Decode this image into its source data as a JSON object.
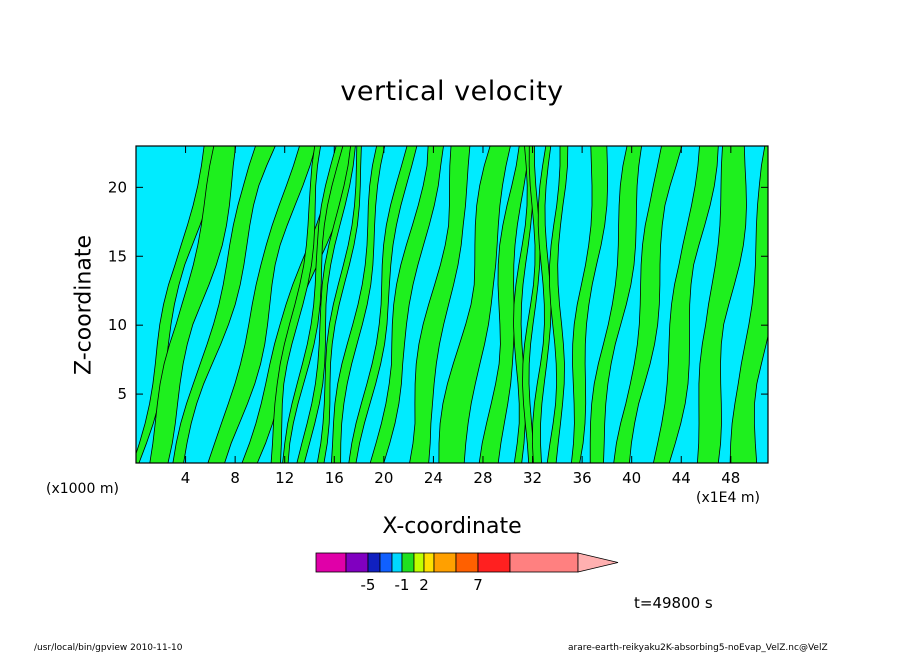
{
  "chart_data": {
    "type": "heatmap",
    "title": "vertical velocity",
    "xlabel": "X-coordinate",
    "ylabel": "Z-coordinate",
    "x_unit_left": "(x1000 m)",
    "x_unit_right": "(x1E4 m)",
    "xlim": [
      0,
      51
    ],
    "ylim": [
      0,
      23
    ],
    "x_ticks": [
      "4",
      "8",
      "12",
      "16",
      "20",
      "24",
      "28",
      "32",
      "36",
      "40",
      "44",
      "48"
    ],
    "y_ticks": [
      "5",
      "10",
      "15",
      "20"
    ],
    "colorbar": {
      "levels_shown": [
        "-5",
        "-1",
        "2",
        "7"
      ],
      "colors": [
        "#e000a8",
        "#8000c0",
        "#1020c0",
        "#1060ff",
        "#00d8ff",
        "#20e020",
        "#c0ff00",
        "#ffe000",
        "#ffa000",
        "#ff6000",
        "#ff2020",
        "#ff8080",
        "#ffb0b0"
      ]
    },
    "dominant_fill": {
      "negative": "#00ebff",
      "positive": "#1ef01e"
    },
    "time_label": "t=49800 s"
  },
  "footer": {
    "left": "/usr/local/bin/gpview  2010-11-10",
    "right": "arare-earth-reikyaku2K-absorbing5-noEvap_VelZ.nc@VelZ"
  }
}
